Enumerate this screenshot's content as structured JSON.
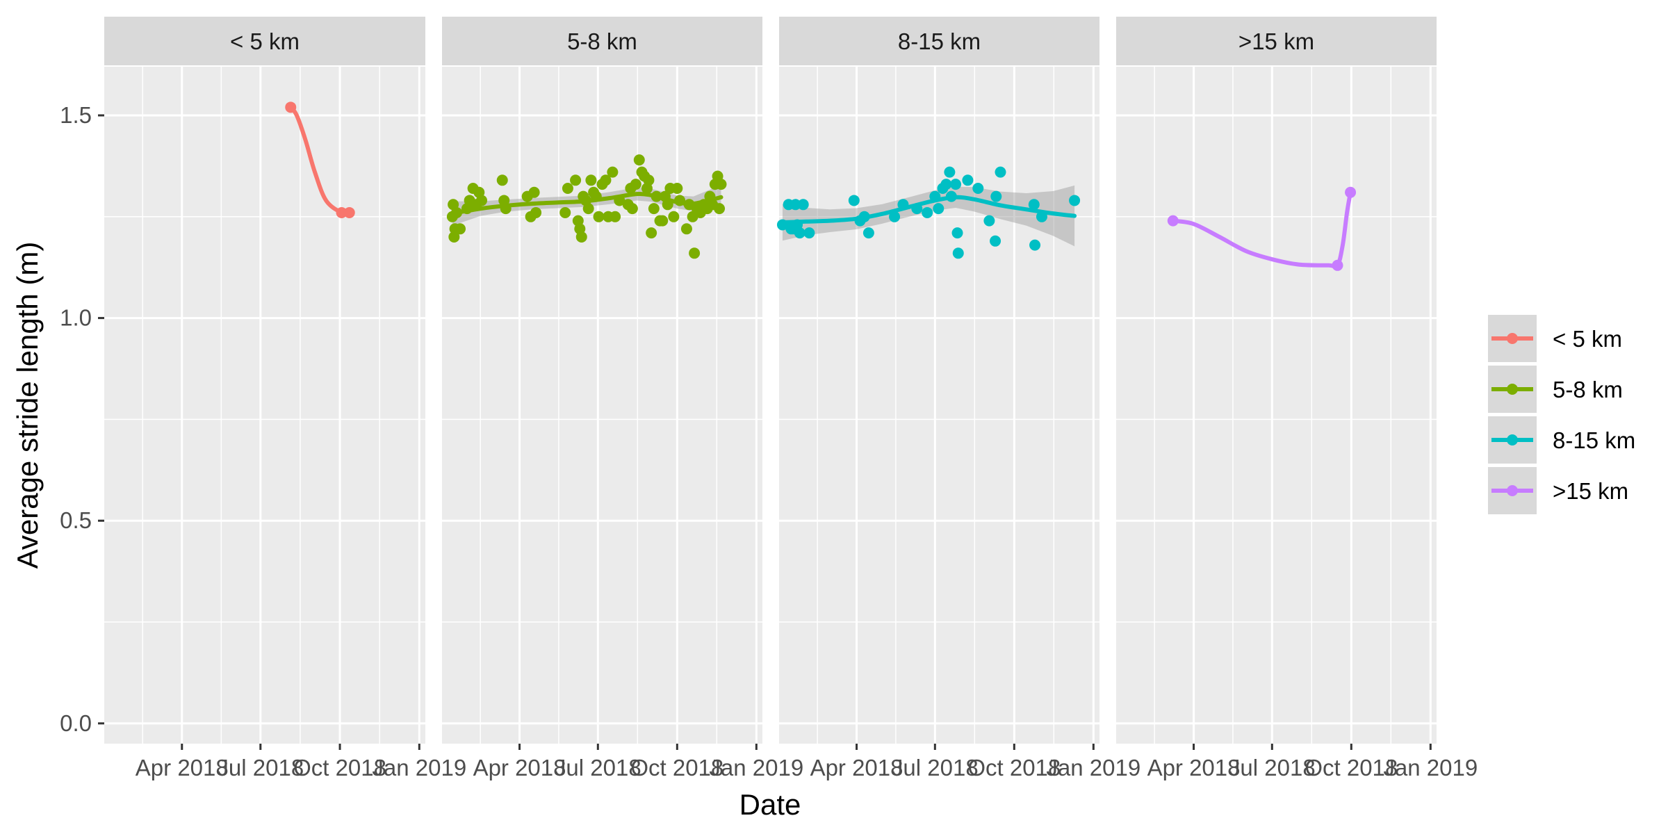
{
  "chart_data": {
    "type": "scatter",
    "facet_by": "distance",
    "xlabel": "Date",
    "ylabel": "Average stride length (m)",
    "ylim": [
      -0.05,
      1.62
    ],
    "xlim": [
      "2018-01-01",
      "2019-01-08"
    ],
    "x_ticks": [
      {
        "date": "2018-04-01",
        "label": "Apr 2018"
      },
      {
        "date": "2018-07-01",
        "label": "Jul 2018"
      },
      {
        "date": "2018-10-01",
        "label": "Oct 2018"
      },
      {
        "date": "2019-01-01",
        "label": "Jan 2019"
      }
    ],
    "y_ticks": [
      {
        "value": 0.0,
        "label": "0.0"
      },
      {
        "value": 0.5,
        "label": "0.5"
      },
      {
        "value": 1.0,
        "label": "1.0"
      },
      {
        "value": 1.5,
        "label": "1.5"
      }
    ],
    "grid": true,
    "legend_position": "right",
    "series": [
      {
        "name": "< 5 km",
        "color": "#F8766D",
        "band": false,
        "points": [
          [
            "2018-08-05",
            1.52
          ],
          [
            "2018-10-03",
            1.26
          ],
          [
            "2018-10-12",
            1.26
          ]
        ],
        "smooth": [
          [
            "2018-08-05",
            1.52
          ],
          [
            "2018-08-12",
            1.5
          ],
          [
            "2018-08-22",
            1.44
          ],
          [
            "2018-09-02",
            1.36
          ],
          [
            "2018-09-15",
            1.29
          ],
          [
            "2018-10-03",
            1.26
          ],
          [
            "2018-10-12",
            1.26
          ]
        ]
      },
      {
        "name": "5-8 km",
        "color": "#7CAE00",
        "band": true,
        "points": [
          [
            "2018-01-13",
            1.25
          ],
          [
            "2018-01-14",
            1.28
          ],
          [
            "2018-01-15",
            1.2
          ],
          [
            "2018-01-16",
            1.22
          ],
          [
            "2018-01-18",
            1.26
          ],
          [
            "2018-01-22",
            1.22
          ],
          [
            "2018-01-30",
            1.27
          ],
          [
            "2018-02-02",
            1.29
          ],
          [
            "2018-02-06",
            1.32
          ],
          [
            "2018-02-10",
            1.28
          ],
          [
            "2018-02-13",
            1.31
          ],
          [
            "2018-02-16",
            1.29
          ],
          [
            "2018-03-12",
            1.34
          ],
          [
            "2018-03-14",
            1.29
          ],
          [
            "2018-03-16",
            1.27
          ],
          [
            "2018-04-10",
            1.3
          ],
          [
            "2018-04-14",
            1.25
          ],
          [
            "2018-04-18",
            1.31
          ],
          [
            "2018-04-20",
            1.26
          ],
          [
            "2018-05-24",
            1.26
          ],
          [
            "2018-05-27",
            1.32
          ],
          [
            "2018-06-05",
            1.34
          ],
          [
            "2018-06-08",
            1.24
          ],
          [
            "2018-06-10",
            1.22
          ],
          [
            "2018-06-12",
            1.2
          ],
          [
            "2018-06-14",
            1.3
          ],
          [
            "2018-06-17",
            1.29
          ],
          [
            "2018-06-20",
            1.27
          ],
          [
            "2018-06-23",
            1.34
          ],
          [
            "2018-06-26",
            1.31
          ],
          [
            "2018-06-29",
            1.3
          ],
          [
            "2018-07-02",
            1.25
          ],
          [
            "2018-07-06",
            1.33
          ],
          [
            "2018-07-10",
            1.34
          ],
          [
            "2018-07-13",
            1.25
          ],
          [
            "2018-07-18",
            1.36
          ],
          [
            "2018-07-21",
            1.25
          ],
          [
            "2018-07-26",
            1.29
          ],
          [
            "2018-08-05",
            1.28
          ],
          [
            "2018-08-08",
            1.32
          ],
          [
            "2018-08-10",
            1.27
          ],
          [
            "2018-08-14",
            1.33
          ],
          [
            "2018-08-18",
            1.39
          ],
          [
            "2018-08-21",
            1.36
          ],
          [
            "2018-08-24",
            1.35
          ],
          [
            "2018-08-27",
            1.32
          ],
          [
            "2018-08-29",
            1.34
          ],
          [
            "2018-09-01",
            1.21
          ],
          [
            "2018-09-04",
            1.27
          ],
          [
            "2018-09-07",
            1.3
          ],
          [
            "2018-09-11",
            1.24
          ],
          [
            "2018-09-14",
            1.24
          ],
          [
            "2018-09-17",
            1.3
          ],
          [
            "2018-09-20",
            1.28
          ],
          [
            "2018-09-23",
            1.32
          ],
          [
            "2018-09-27",
            1.25
          ],
          [
            "2018-10-01",
            1.32
          ],
          [
            "2018-10-04",
            1.29
          ],
          [
            "2018-10-12",
            1.22
          ],
          [
            "2018-10-15",
            1.28
          ],
          [
            "2018-10-19",
            1.25
          ],
          [
            "2018-10-21",
            1.16
          ],
          [
            "2018-10-24",
            1.27
          ],
          [
            "2018-10-28",
            1.26
          ],
          [
            "2018-11-01",
            1.28
          ],
          [
            "2018-11-05",
            1.27
          ],
          [
            "2018-11-08",
            1.3
          ],
          [
            "2018-11-11",
            1.28
          ],
          [
            "2018-11-14",
            1.33
          ],
          [
            "2018-11-17",
            1.35
          ],
          [
            "2018-11-21",
            1.33
          ],
          [
            "2018-11-19",
            1.27
          ]
        ],
        "smooth": [
          [
            "2018-01-13",
            1.258
          ],
          [
            "2018-02-15",
            1.27
          ],
          [
            "2018-03-15",
            1.277
          ],
          [
            "2018-04-15",
            1.282
          ],
          [
            "2018-05-15",
            1.285
          ],
          [
            "2018-06-15",
            1.288
          ],
          [
            "2018-07-15",
            1.296
          ],
          [
            "2018-08-15",
            1.306
          ],
          [
            "2018-09-01",
            1.303
          ],
          [
            "2018-09-15",
            1.295
          ],
          [
            "2018-10-01",
            1.286
          ],
          [
            "2018-10-20",
            1.282
          ],
          [
            "2018-11-21",
            1.298
          ]
        ],
        "band_width": [
          0.03,
          0.018,
          0.015,
          0.014,
          0.014,
          0.014,
          0.015,
          0.016,
          0.016,
          0.016,
          0.016,
          0.018,
          0.03
        ]
      },
      {
        "name": "8-15 km",
        "color": "#00BFC4",
        "band": true,
        "points": [
          [
            "2018-01-05",
            1.23
          ],
          [
            "2018-01-12",
            1.28
          ],
          [
            "2018-01-15",
            1.22
          ],
          [
            "2018-01-18",
            1.22
          ],
          [
            "2018-01-20",
            1.28
          ],
          [
            "2018-01-22",
            1.23
          ],
          [
            "2018-01-25",
            1.21
          ],
          [
            "2018-01-29",
            1.28
          ],
          [
            "2018-02-05",
            1.21
          ],
          [
            "2018-03-29",
            1.29
          ],
          [
            "2018-04-05",
            1.24
          ],
          [
            "2018-04-10",
            1.25
          ],
          [
            "2018-04-15",
            1.21
          ],
          [
            "2018-05-15",
            1.25
          ],
          [
            "2018-05-25",
            1.28
          ],
          [
            "2018-06-10",
            1.27
          ],
          [
            "2018-06-22",
            1.26
          ],
          [
            "2018-07-01",
            1.3
          ],
          [
            "2018-07-05",
            1.27
          ],
          [
            "2018-07-10",
            1.32
          ],
          [
            "2018-07-14",
            1.33
          ],
          [
            "2018-07-18",
            1.36
          ],
          [
            "2018-07-20",
            1.3
          ],
          [
            "2018-07-25",
            1.33
          ],
          [
            "2018-07-27",
            1.21
          ],
          [
            "2018-07-28",
            1.16
          ],
          [
            "2018-08-08",
            1.34
          ],
          [
            "2018-08-20",
            1.32
          ],
          [
            "2018-09-02",
            1.24
          ],
          [
            "2018-09-09",
            1.19
          ],
          [
            "2018-09-10",
            1.3
          ],
          [
            "2018-09-15",
            1.36
          ],
          [
            "2018-10-24",
            1.28
          ],
          [
            "2018-10-25",
            1.18
          ],
          [
            "2018-11-02",
            1.25
          ],
          [
            "2018-12-10",
            1.29
          ]
        ],
        "smooth": [
          [
            "2018-01-05",
            1.236
          ],
          [
            "2018-02-01",
            1.238
          ],
          [
            "2018-03-01",
            1.24
          ],
          [
            "2018-04-01",
            1.245
          ],
          [
            "2018-05-01",
            1.257
          ],
          [
            "2018-06-01",
            1.274
          ],
          [
            "2018-07-01",
            1.29
          ],
          [
            "2018-07-25",
            1.298
          ],
          [
            "2018-08-15",
            1.293
          ],
          [
            "2018-09-15",
            1.278
          ],
          [
            "2018-10-15",
            1.268
          ],
          [
            "2018-11-15",
            1.258
          ],
          [
            "2018-12-10",
            1.252
          ]
        ],
        "band_width": [
          0.045,
          0.034,
          0.028,
          0.026,
          0.024,
          0.024,
          0.025,
          0.026,
          0.03,
          0.034,
          0.04,
          0.055,
          0.075
        ]
      },
      {
        "name": ">15 km",
        "color": "#C77CFF",
        "band": false,
        "points": [
          [
            "2018-03-08",
            1.24
          ],
          [
            "2018-09-15",
            1.13
          ],
          [
            "2018-09-30",
            1.31
          ]
        ],
        "smooth": [
          [
            "2018-03-08",
            1.24
          ],
          [
            "2018-04-01",
            1.232
          ],
          [
            "2018-05-01",
            1.2
          ],
          [
            "2018-06-01",
            1.165
          ],
          [
            "2018-07-01",
            1.145
          ],
          [
            "2018-08-01",
            1.132
          ],
          [
            "2018-09-05",
            1.13
          ],
          [
            "2018-09-15",
            1.13
          ],
          [
            "2018-09-21",
            1.18
          ],
          [
            "2018-09-26",
            1.26
          ],
          [
            "2018-09-30",
            1.31
          ]
        ]
      }
    ]
  }
}
